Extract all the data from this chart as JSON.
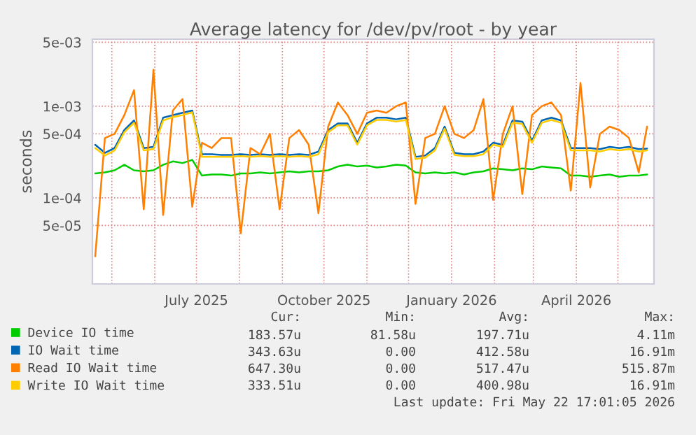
{
  "chart_data": {
    "type": "line",
    "title": "Average latency for /dev/pv/root - by year",
    "ylabel": "seconds",
    "log": "y",
    "grid": true,
    "legend": "bottom",
    "line_style": "solid",
    "marker": "none",
    "x": [
      "2025-04-19",
      "2025-04-26",
      "2025-05-03",
      "2025-05-10",
      "2025-05-17",
      "2025-05-24",
      "2025-05-31",
      "2025-06-07",
      "2025-06-14",
      "2025-06-21",
      "2025-06-28",
      "2025-07-05",
      "2025-07-12",
      "2025-07-19",
      "2025-07-26",
      "2025-08-02",
      "2025-08-09",
      "2025-08-16",
      "2025-08-23",
      "2025-08-30",
      "2025-09-06",
      "2025-09-13",
      "2025-09-20",
      "2025-09-27",
      "2025-10-04",
      "2025-10-11",
      "2025-10-18",
      "2025-10-25",
      "2025-11-01",
      "2025-11-08",
      "2025-11-15",
      "2025-11-22",
      "2025-11-29",
      "2025-12-06",
      "2025-12-13",
      "2025-12-20",
      "2025-12-27",
      "2026-01-03",
      "2026-01-10",
      "2026-01-17",
      "2026-01-24",
      "2026-01-31",
      "2026-02-07",
      "2026-02-14",
      "2026-02-21",
      "2026-02-28",
      "2026-03-07",
      "2026-03-14",
      "2026-03-21",
      "2026-03-28",
      "2026-04-04",
      "2026-04-11",
      "2026-04-18",
      "2026-04-25",
      "2026-05-02",
      "2026-05-09",
      "2026-05-16",
      "2026-05-22"
    ],
    "series": [
      {
        "name": "Device IO time",
        "color": "#00cc00",
        "values": [
          0.000185,
          0.00019,
          0.0002,
          0.00023,
          0.0002,
          0.000195,
          0.0002,
          0.00023,
          0.00025,
          0.00024,
          0.00026,
          0.000175,
          0.00018,
          0.00018,
          0.000175,
          0.000185,
          0.000185,
          0.00019,
          0.000185,
          0.00019,
          0.000195,
          0.00019,
          0.000195,
          0.000195,
          0.0002,
          0.00022,
          0.00023,
          0.00022,
          0.000225,
          0.000215,
          0.00022,
          0.00023,
          0.000225,
          0.00019,
          0.000185,
          0.00019,
          0.000185,
          0.00019,
          0.00018,
          0.00019,
          0.000195,
          0.00021,
          0.000205,
          0.0002,
          0.00021,
          0.000205,
          0.00022,
          0.000215,
          0.00021,
          0.000175,
          0.000175,
          0.00017,
          0.000175,
          0.00018,
          0.00017,
          0.000175,
          0.000175,
          0.00018
        ]
      },
      {
        "name": "IO Wait time",
        "color": "#0066b3",
        "values": [
          0.00038,
          0.00031,
          0.00035,
          0.00055,
          0.0007,
          0.00035,
          0.00036,
          0.00075,
          0.0008,
          0.00085,
          0.0009,
          0.0003,
          0.0003,
          0.000295,
          0.000295,
          0.0003,
          0.000295,
          0.0003,
          0.000295,
          0.0003,
          0.000295,
          0.0003,
          0.000295,
          0.00032,
          0.00055,
          0.00065,
          0.00065,
          0.0004,
          0.00065,
          0.00075,
          0.00075,
          0.00072,
          0.00075,
          0.00028,
          0.00029,
          0.00035,
          0.0006,
          0.00031,
          0.0003,
          0.0003,
          0.00032,
          0.0004,
          0.00038,
          0.0007,
          0.00068,
          0.00042,
          0.0007,
          0.00075,
          0.0007,
          0.00035,
          0.00035,
          0.00035,
          0.00034,
          0.00036,
          0.00035,
          0.00036,
          0.00034,
          0.000345
        ]
      },
      {
        "name": "Read IO Wait time",
        "color": "#ff8000",
        "values": [
          2.3e-05,
          0.00045,
          0.0005,
          0.0008,
          0.0015,
          7.5e-05,
          0.0025,
          6.5e-05,
          0.0009,
          0.0012,
          8e-05,
          0.0004,
          0.00035,
          0.00045,
          0.00045,
          4.1e-05,
          0.00035,
          0.0003,
          0.0005,
          7.5e-05,
          0.00045,
          0.00055,
          0.00038,
          6.8e-05,
          0.0006,
          0.0011,
          0.0008,
          0.0005,
          0.00085,
          0.0009,
          0.00085,
          0.001,
          0.0011,
          8.6e-05,
          0.00045,
          0.0005,
          0.001,
          0.0005,
          0.00045,
          0.00055,
          0.0012,
          9.5e-05,
          0.0005,
          0.001,
          0.00011,
          0.0008,
          0.001,
          0.0011,
          0.0008,
          0.00012,
          0.0018,
          0.00013,
          0.0005,
          0.0006,
          0.00055,
          0.00045,
          0.00019,
          0.0006
        ]
      },
      {
        "name": "Write IO Wait time",
        "color": "#ffcc00",
        "values": [
          0.00035,
          0.00029,
          0.00033,
          0.00052,
          0.00066,
          0.00033,
          0.00034,
          0.0007,
          0.00076,
          0.0008,
          0.00086,
          0.00028,
          0.00028,
          0.00028,
          0.00028,
          0.000285,
          0.00028,
          0.000285,
          0.00028,
          0.000285,
          0.00028,
          0.000285,
          0.00028,
          0.0003,
          0.00052,
          0.00062,
          0.00062,
          0.00038,
          0.00062,
          0.00071,
          0.00071,
          0.00068,
          0.00071,
          0.000265,
          0.000275,
          0.00033,
          0.00057,
          0.000295,
          0.000285,
          0.000285,
          0.0003,
          0.00038,
          0.00036,
          0.00066,
          0.00064,
          0.0004,
          0.00066,
          0.00071,
          0.00066,
          0.00033,
          0.00033,
          0.00033,
          0.00032,
          0.00034,
          0.00033,
          0.00034,
          0.00032,
          0.00033
        ]
      }
    ],
    "xlim": [
      "2025-04-17",
      "2026-05-27"
    ],
    "ylim": [
      1.15e-05,
      0.0054
    ],
    "xticks": [
      {
        "value": "2025-05-01",
        "label": null
      },
      {
        "value": "2025-06-01",
        "label": null
      },
      {
        "value": "2025-07-01",
        "label": "July 2025"
      },
      {
        "value": "2025-08-01",
        "label": null
      },
      {
        "value": "2025-09-01",
        "label": null
      },
      {
        "value": "2025-10-01",
        "label": "October 2025"
      },
      {
        "value": "2025-11-01",
        "label": null
      },
      {
        "value": "2025-12-01",
        "label": null
      },
      {
        "value": "2026-01-01",
        "label": "January 2026"
      },
      {
        "value": "2026-02-01",
        "label": null
      },
      {
        "value": "2026-03-01",
        "label": null
      },
      {
        "value": "2026-04-01",
        "label": "April 2026"
      },
      {
        "value": "2026-05-01",
        "label": null
      }
    ],
    "yticks": [
      {
        "value": 5e-05,
        "label": "5e-05"
      },
      {
        "value": 0.0001,
        "label": "1e-04"
      },
      {
        "value": 0.0005,
        "label": "5e-04"
      },
      {
        "value": 0.001,
        "label": "1e-03"
      },
      {
        "value": 0.005,
        "label": "5e-03"
      }
    ],
    "annotations": [
      "Cur:",
      "Min:",
      "Avg:",
      "Max:",
      "183.57u",
      "81.58u",
      "197.71u",
      "4.11m",
      "343.63u",
      "0.00",
      "412.58u",
      "16.91m",
      "647.30u",
      "0.00",
      "517.47u",
      "515.87m",
      "333.51u",
      "0.00",
      "400.98u",
      "16.91m",
      "Last update: Fri May 22 17:01:05 2026"
    ]
  }
}
